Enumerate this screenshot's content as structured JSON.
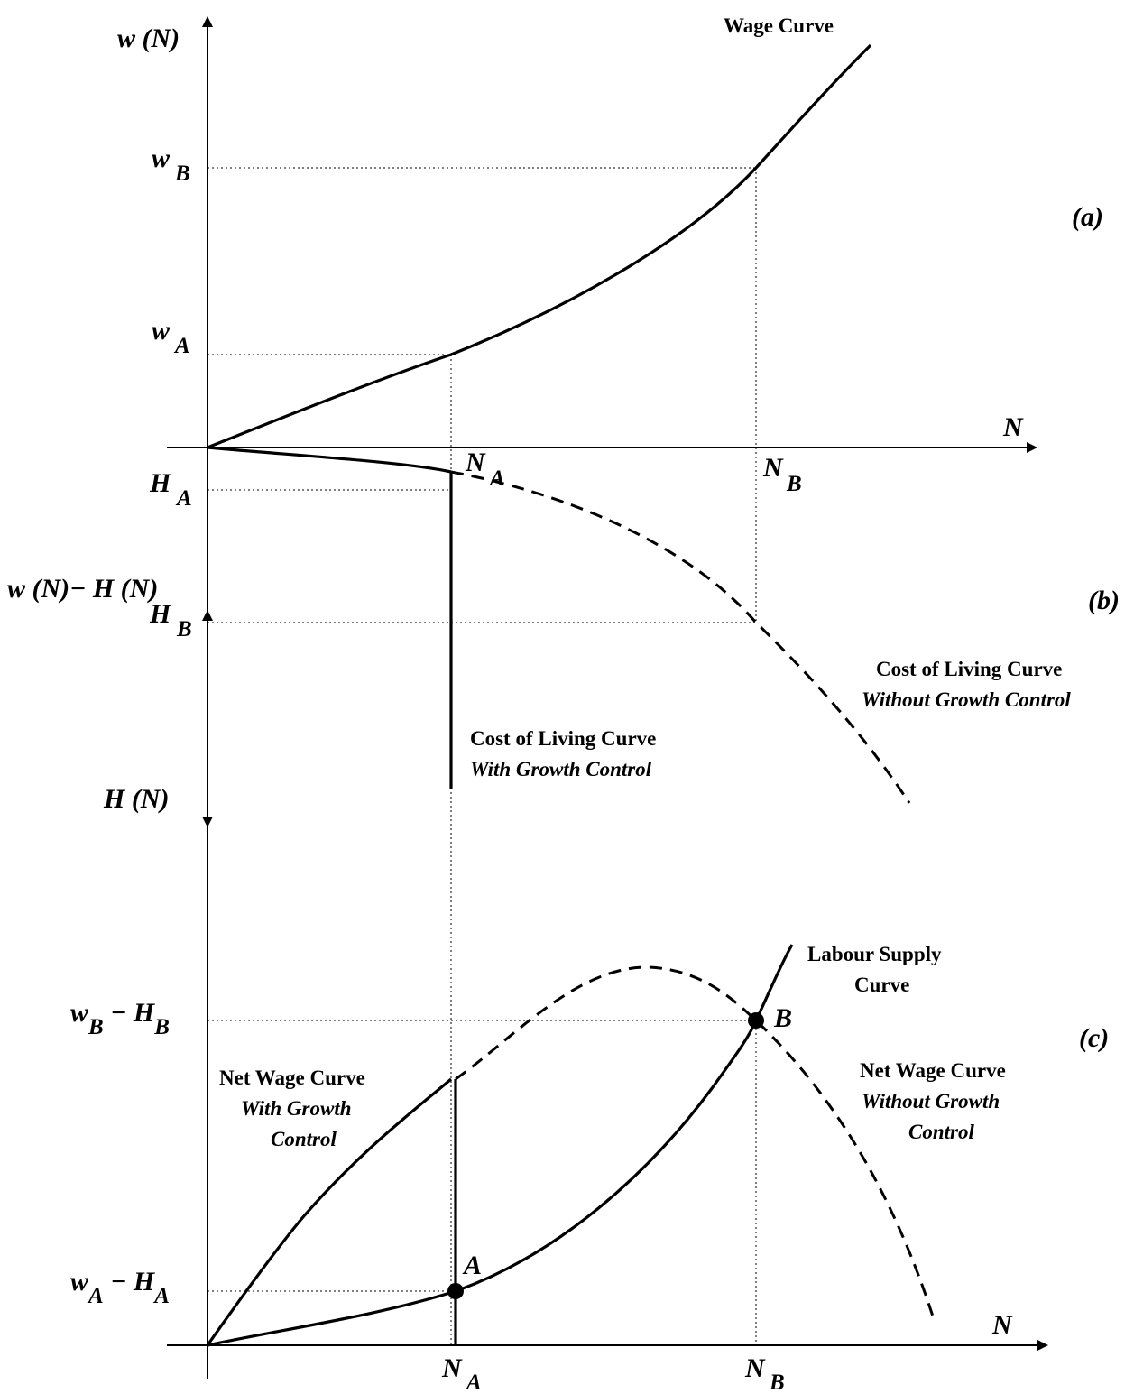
{
  "panels": {
    "a": "(a)",
    "b": "(b)",
    "c": "(c)"
  },
  "top_axes": {
    "y_up_label": "w (N)",
    "y_down_label": "H (N)",
    "x_label": "N"
  },
  "bottom_axes": {
    "y_label": "w (N)− H (N)",
    "x_label": "N"
  },
  "ticks": {
    "w_B": "w",
    "w_B_sub": "B",
    "w_A": "w",
    "w_A_sub": "A",
    "H_A": "H",
    "H_A_sub": "A",
    "H_B": "H",
    "H_B_sub": "B",
    "N_A": "N",
    "N_A_sub": "A",
    "N_B": "N",
    "N_B_sub": "B",
    "wB_minus_HB": {
      "w": "w",
      "w_sub": "B",
      "minus": " − ",
      "h": "H",
      "h_sub": "B"
    },
    "wA_minus_HA": {
      "w": "w",
      "w_sub": "A",
      "minus": " − ",
      "h": "H",
      "h_sub": "A"
    }
  },
  "curves": {
    "wage_curve": "Wage Curve",
    "col_with_1": "Cost of Living Curve",
    "col_with_2": "With Growth Control",
    "col_without_1": "Cost of Living Curve",
    "col_without_2": "Without Growth Control",
    "labour_supply_1": "Labour Supply",
    "labour_supply_2": "Curve",
    "net_with_1": "Net Wage Curve",
    "net_with_2": "With Growth",
    "net_with_3": "Control",
    "net_without_1": "Net Wage Curve",
    "net_without_2": "Without Growth",
    "net_without_3": "Control"
  },
  "points": {
    "A": "A",
    "B": "B"
  }
}
